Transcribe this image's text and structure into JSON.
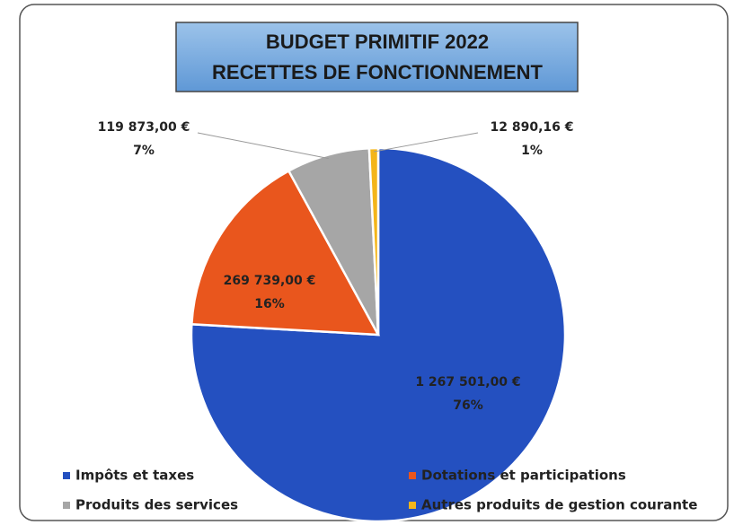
{
  "chart_data": {
    "type": "pie",
    "title": "BUDGET PRIMITIF 2022",
    "subtitle": "RECETTES DE FONCTIONNEMENT",
    "categories": [
      "Impôts et taxes",
      "Dotations et participations",
      "Produits des services",
      "Autres produits de gestion courante"
    ],
    "values": [
      1267501.0,
      269739.0,
      119873.0,
      12890.16
    ],
    "value_labels": [
      "1 267 501,00 €",
      "269 739,00 €",
      "119 873,00 €",
      "12 890,16 €"
    ],
    "percent_labels": [
      "76%",
      "16%",
      "7%",
      "1%"
    ],
    "colors": [
      "#2450c0",
      "#e9561d",
      "#a6a6a6",
      "#f4b51a"
    ],
    "legend": "bottom"
  }
}
